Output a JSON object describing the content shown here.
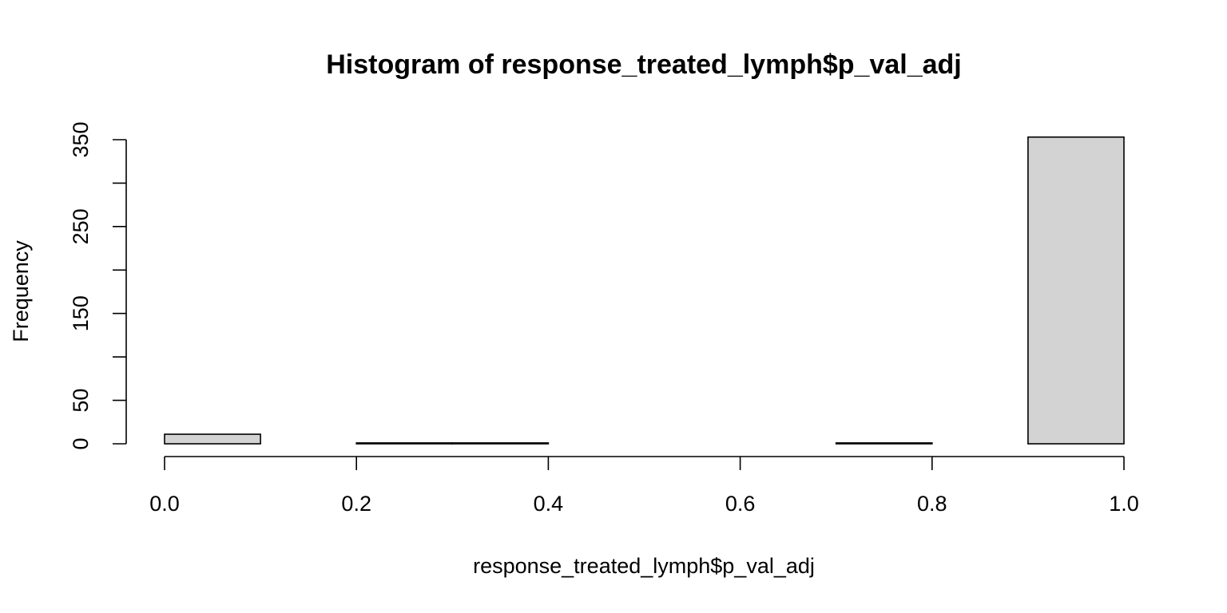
{
  "chart_data": {
    "type": "bar",
    "title": "Histogram of response_treated_lymph$p_val_adj",
    "xlabel": "response_treated_lymph$p_val_adj",
    "ylabel": "Frequency",
    "xlim": [
      0.0,
      1.0
    ],
    "ylim": [
      0,
      350
    ],
    "x_ticks": [
      0.0,
      0.2,
      0.4,
      0.6,
      0.8,
      1.0
    ],
    "x_tick_labels": [
      "0.0",
      "0.2",
      "0.4",
      "0.6",
      "0.8",
      "1.0"
    ],
    "y_ticks": [
      0,
      50,
      100,
      150,
      200,
      250,
      300,
      350
    ],
    "y_tick_labels": [
      "0",
      "50",
      "",
      "150",
      "",
      "250",
      "",
      "350"
    ],
    "bins": [
      {
        "start": 0.0,
        "end": 0.1,
        "count": 11
      },
      {
        "start": 0.1,
        "end": 0.2,
        "count": 0
      },
      {
        "start": 0.2,
        "end": 0.3,
        "count": 1
      },
      {
        "start": 0.3,
        "end": 0.4,
        "count": 1
      },
      {
        "start": 0.4,
        "end": 0.5,
        "count": 0
      },
      {
        "start": 0.5,
        "end": 0.6,
        "count": 0
      },
      {
        "start": 0.6,
        "end": 0.7,
        "count": 0
      },
      {
        "start": 0.7,
        "end": 0.8,
        "count": 1
      },
      {
        "start": 0.8,
        "end": 0.9,
        "count": 0
      },
      {
        "start": 0.9,
        "end": 1.0,
        "count": 353
      }
    ],
    "bar_color": "#d3d3d3",
    "grid": false,
    "legend": "none"
  }
}
